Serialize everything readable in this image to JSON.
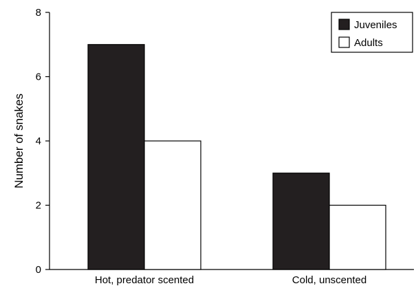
{
  "chart_data": {
    "type": "bar",
    "categories": [
      "Hot, predator scented",
      "Cold, unscented"
    ],
    "series": [
      {
        "name": "Juveniles",
        "values": [
          7,
          3
        ],
        "color": "#231f20"
      },
      {
        "name": "Adults",
        "values": [
          4,
          2
        ],
        "color": "#ffffff"
      }
    ],
    "xlabel": "",
    "ylabel": "Number of snakes",
    "ylim": [
      0,
      8
    ],
    "yticks": [
      0,
      2,
      4,
      6,
      8
    ],
    "grid": false,
    "legend_position": "top-right"
  }
}
